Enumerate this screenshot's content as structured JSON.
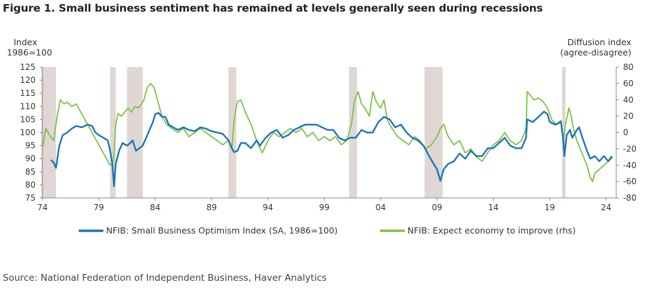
{
  "title": "Figure 1. Small business sentiment has remained at levels generally seen during recessions",
  "source": "Source: National Federation of Independent Business, Haver Analytics",
  "chart_data": {
    "type": "line",
    "left_axis_label": [
      "Index",
      "1986=100"
    ],
    "right_axis_label": [
      "Diffusion index",
      "(agree-disagree)"
    ],
    "xlim": [
      1974,
      2024.9
    ],
    "ylim_left": [
      75,
      125
    ],
    "ylim_right": [
      -80,
      80
    ],
    "x_ticks": [
      1974,
      1979,
      1984,
      1989,
      1994,
      1999,
      2004,
      2009,
      2014,
      2019,
      2024
    ],
    "x_tick_labels": [
      "74",
      "79",
      "84",
      "89",
      "94",
      "99",
      "04",
      "09",
      "14",
      "19",
      "24"
    ],
    "y_ticks_left": [
      75,
      80,
      85,
      90,
      95,
      100,
      105,
      110,
      115,
      120,
      125
    ],
    "y_ticks_right": [
      -80,
      -60,
      -40,
      -20,
      0,
      20,
      40,
      60,
      80
    ],
    "y_tick_labels_right": [
      "-80",
      "-60",
      "-40",
      "-20",
      "0",
      "20",
      "40",
      "60",
      "80"
    ],
    "grid": false,
    "legend_position": "bottom",
    "recessions": [
      [
        1973.9,
        1975.2
      ],
      [
        1980.0,
        1980.5
      ],
      [
        1981.5,
        1982.9
      ],
      [
        1990.5,
        1991.2
      ],
      [
        2001.2,
        2001.9
      ],
      [
        2007.9,
        2009.5
      ],
      [
        2020.1,
        2020.4
      ]
    ],
    "series": [
      {
        "name": "NFIB: Small Business Optimism Index (SA, 1986=100)",
        "axis": "left",
        "color": "#1a75b8",
        "points": [
          [
            1974.75,
            89.5
          ],
          [
            1975.0,
            88.5
          ],
          [
            1975.2,
            86.5
          ],
          [
            1975.5,
            95
          ],
          [
            1975.8,
            99
          ],
          [
            1976.2,
            100
          ],
          [
            1976.6,
            101.5
          ],
          [
            1977.0,
            102.5
          ],
          [
            1977.5,
            102
          ],
          [
            1978.0,
            103
          ],
          [
            1978.4,
            102.5
          ],
          [
            1978.7,
            100
          ],
          [
            1979.0,
            99
          ],
          [
            1979.4,
            98
          ],
          [
            1979.8,
            97
          ],
          [
            1980.0,
            93
          ],
          [
            1980.2,
            88
          ],
          [
            1980.35,
            79.5
          ],
          [
            1980.5,
            88
          ],
          [
            1980.8,
            93
          ],
          [
            1981.1,
            96
          ],
          [
            1981.5,
            95
          ],
          [
            1981.8,
            96
          ],
          [
            1982.0,
            97
          ],
          [
            1982.3,
            93
          ],
          [
            1982.6,
            94
          ],
          [
            1982.9,
            95
          ],
          [
            1983.2,
            98
          ],
          [
            1983.5,
            101
          ],
          [
            1983.8,
            104
          ],
          [
            1984.0,
            107
          ],
          [
            1984.3,
            107.5
          ],
          [
            1984.6,
            106
          ],
          [
            1984.9,
            106
          ],
          [
            1985.2,
            103
          ],
          [
            1985.6,
            102
          ],
          [
            1986.0,
            101
          ],
          [
            1986.5,
            102
          ],
          [
            1987.0,
            101
          ],
          [
            1987.5,
            100.5
          ],
          [
            1988.0,
            102
          ],
          [
            1988.5,
            101.5
          ],
          [
            1989.0,
            100.5
          ],
          [
            1989.5,
            100
          ],
          [
            1990.0,
            99.5
          ],
          [
            1990.5,
            97
          ],
          [
            1990.8,
            94
          ],
          [
            1991.0,
            92.5
          ],
          [
            1991.3,
            93
          ],
          [
            1991.6,
            96
          ],
          [
            1992.0,
            96
          ],
          [
            1992.5,
            94
          ],
          [
            1993.0,
            97
          ],
          [
            1993.3,
            95
          ],
          [
            1993.8,
            98
          ],
          [
            1994.3,
            100
          ],
          [
            1994.8,
            101
          ],
          [
            1995.3,
            98
          ],
          [
            1995.8,
            99
          ],
          [
            1996.3,
            101
          ],
          [
            1996.8,
            102
          ],
          [
            1997.3,
            103
          ],
          [
            1997.8,
            103
          ],
          [
            1998.3,
            103
          ],
          [
            1998.8,
            102
          ],
          [
            1999.3,
            101
          ],
          [
            1999.8,
            101
          ],
          [
            2000.3,
            98
          ],
          [
            2000.8,
            97
          ],
          [
            2001.3,
            98
          ],
          [
            2001.8,
            98
          ],
          [
            2002.3,
            101
          ],
          [
            2002.8,
            100
          ],
          [
            2003.3,
            100
          ],
          [
            2003.8,
            104
          ],
          [
            2004.3,
            106
          ],
          [
            2004.8,
            105
          ],
          [
            2005.3,
            102
          ],
          [
            2005.8,
            103
          ],
          [
            2006.3,
            100
          ],
          [
            2006.8,
            98
          ],
          [
            2007.3,
            97
          ],
          [
            2007.8,
            95
          ],
          [
            2008.3,
            91
          ],
          [
            2008.7,
            88
          ],
          [
            2009.0,
            86
          ],
          [
            2009.3,
            81.5
          ],
          [
            2009.6,
            86
          ],
          [
            2010.0,
            88
          ],
          [
            2010.5,
            89
          ],
          [
            2011.0,
            92
          ],
          [
            2011.5,
            90
          ],
          [
            2012.0,
            93
          ],
          [
            2012.5,
            91
          ],
          [
            2013.0,
            91
          ],
          [
            2013.5,
            94
          ],
          [
            2014.0,
            94
          ],
          [
            2014.5,
            96
          ],
          [
            2015.0,
            98
          ],
          [
            2015.5,
            95
          ],
          [
            2016.0,
            94
          ],
          [
            2016.5,
            94
          ],
          [
            2016.9,
            98
          ],
          [
            2017.0,
            105
          ],
          [
            2017.5,
            104
          ],
          [
            2018.0,
            106
          ],
          [
            2018.5,
            108
          ],
          [
            2018.8,
            107
          ],
          [
            2019.0,
            104
          ],
          [
            2019.5,
            103
          ],
          [
            2020.0,
            104
          ],
          [
            2020.2,
            97
          ],
          [
            2020.3,
            91
          ],
          [
            2020.5,
            99
          ],
          [
            2020.8,
            101
          ],
          [
            2021.0,
            98
          ],
          [
            2021.4,
            101
          ],
          [
            2021.6,
            102
          ],
          [
            2021.9,
            98
          ],
          [
            2022.3,
            93
          ],
          [
            2022.6,
            90
          ],
          [
            2023.0,
            91
          ],
          [
            2023.4,
            89
          ],
          [
            2023.8,
            91
          ],
          [
            2024.2,
            89
          ],
          [
            2024.5,
            91
          ]
        ]
      },
      {
        "name": "NFIB: Expect economy to improve (rhs)",
        "axis": "right",
        "color": "#7cc243",
        "points": [
          [
            1974.0,
            -20
          ],
          [
            1974.3,
            5
          ],
          [
            1974.7,
            -5
          ],
          [
            1975.0,
            -10
          ],
          [
            1975.3,
            20
          ],
          [
            1975.6,
            40
          ],
          [
            1975.9,
            35
          ],
          [
            1976.2,
            37
          ],
          [
            1976.6,
            32
          ],
          [
            1977.0,
            35
          ],
          [
            1977.4,
            25
          ],
          [
            1977.8,
            15
          ],
          [
            1978.2,
            5
          ],
          [
            1978.6,
            -5
          ],
          [
            1979.0,
            -15
          ],
          [
            1979.4,
            -25
          ],
          [
            1979.8,
            -35
          ],
          [
            1980.0,
            -40
          ],
          [
            1980.3,
            -35
          ],
          [
            1980.5,
            10
          ],
          [
            1980.7,
            23
          ],
          [
            1981.0,
            20
          ],
          [
            1981.3,
            25
          ],
          [
            1981.6,
            30
          ],
          [
            1981.9,
            25
          ],
          [
            1982.2,
            32
          ],
          [
            1982.5,
            30
          ],
          [
            1982.8,
            35
          ],
          [
            1983.0,
            40
          ],
          [
            1983.3,
            55
          ],
          [
            1983.6,
            60
          ],
          [
            1983.9,
            55
          ],
          [
            1984.2,
            40
          ],
          [
            1984.6,
            20
          ],
          [
            1985.0,
            10
          ],
          [
            1985.5,
            5
          ],
          [
            1986.0,
            0
          ],
          [
            1986.5,
            5
          ],
          [
            1987.0,
            -5
          ],
          [
            1987.5,
            0
          ],
          [
            1988.0,
            5
          ],
          [
            1988.5,
            0
          ],
          [
            1989.0,
            -5
          ],
          [
            1989.5,
            -10
          ],
          [
            1990.0,
            -15
          ],
          [
            1990.5,
            -10
          ],
          [
            1990.8,
            -20
          ],
          [
            1991.0,
            15
          ],
          [
            1991.3,
            38
          ],
          [
            1991.6,
            40
          ],
          [
            1992.0,
            25
          ],
          [
            1992.5,
            10
          ],
          [
            1993.0,
            -10
          ],
          [
            1993.5,
            -25
          ],
          [
            1994.0,
            -10
          ],
          [
            1994.5,
            0
          ],
          [
            1995.0,
            -5
          ],
          [
            1995.5,
            0
          ],
          [
            1996.0,
            5
          ],
          [
            1996.5,
            0
          ],
          [
            1997.0,
            5
          ],
          [
            1997.5,
            -5
          ],
          [
            1998.0,
            0
          ],
          [
            1998.5,
            -10
          ],
          [
            1999.0,
            -5
          ],
          [
            1999.5,
            -10
          ],
          [
            2000.0,
            -5
          ],
          [
            2000.5,
            -15
          ],
          [
            2001.0,
            -10
          ],
          [
            2001.4,
            10
          ],
          [
            2001.7,
            40
          ],
          [
            2002.0,
            50
          ],
          [
            2002.3,
            35
          ],
          [
            2002.6,
            30
          ],
          [
            2003.0,
            20
          ],
          [
            2003.3,
            50
          ],
          [
            2003.6,
            38
          ],
          [
            2004.0,
            30
          ],
          [
            2004.3,
            40
          ],
          [
            2004.6,
            15
          ],
          [
            2005.0,
            5
          ],
          [
            2005.5,
            -5
          ],
          [
            2006.0,
            -10
          ],
          [
            2006.5,
            -15
          ],
          [
            2007.0,
            -5
          ],
          [
            2007.5,
            -10
          ],
          [
            2008.0,
            -20
          ],
          [
            2008.5,
            -15
          ],
          [
            2009.0,
            -5
          ],
          [
            2009.3,
            5
          ],
          [
            2009.6,
            10
          ],
          [
            2010.0,
            -5
          ],
          [
            2010.5,
            -15
          ],
          [
            2011.0,
            -10
          ],
          [
            2011.5,
            -25
          ],
          [
            2012.0,
            -20
          ],
          [
            2012.5,
            -30
          ],
          [
            2013.0,
            -35
          ],
          [
            2013.5,
            -25
          ],
          [
            2014.0,
            -15
          ],
          [
            2014.5,
            -10
          ],
          [
            2015.0,
            0
          ],
          [
            2015.5,
            -10
          ],
          [
            2016.0,
            -15
          ],
          [
            2016.5,
            -10
          ],
          [
            2016.9,
            5
          ],
          [
            2017.0,
            50
          ],
          [
            2017.3,
            45
          ],
          [
            2017.6,
            40
          ],
          [
            2018.0,
            42
          ],
          [
            2018.4,
            38
          ],
          [
            2018.8,
            30
          ],
          [
            2019.2,
            15
          ],
          [
            2019.6,
            10
          ],
          [
            2020.0,
            15
          ],
          [
            2020.2,
            -10
          ],
          [
            2020.4,
            10
          ],
          [
            2020.7,
            30
          ],
          [
            2020.9,
            20
          ],
          [
            2021.1,
            5
          ],
          [
            2021.4,
            -10
          ],
          [
            2021.7,
            -20
          ],
          [
            2022.0,
            -30
          ],
          [
            2022.3,
            -40
          ],
          [
            2022.6,
            -55
          ],
          [
            2022.8,
            -60
          ],
          [
            2023.0,
            -50
          ],
          [
            2023.4,
            -45
          ],
          [
            2023.8,
            -40
          ],
          [
            2024.2,
            -35
          ],
          [
            2024.6,
            -30
          ]
        ]
      }
    ]
  }
}
